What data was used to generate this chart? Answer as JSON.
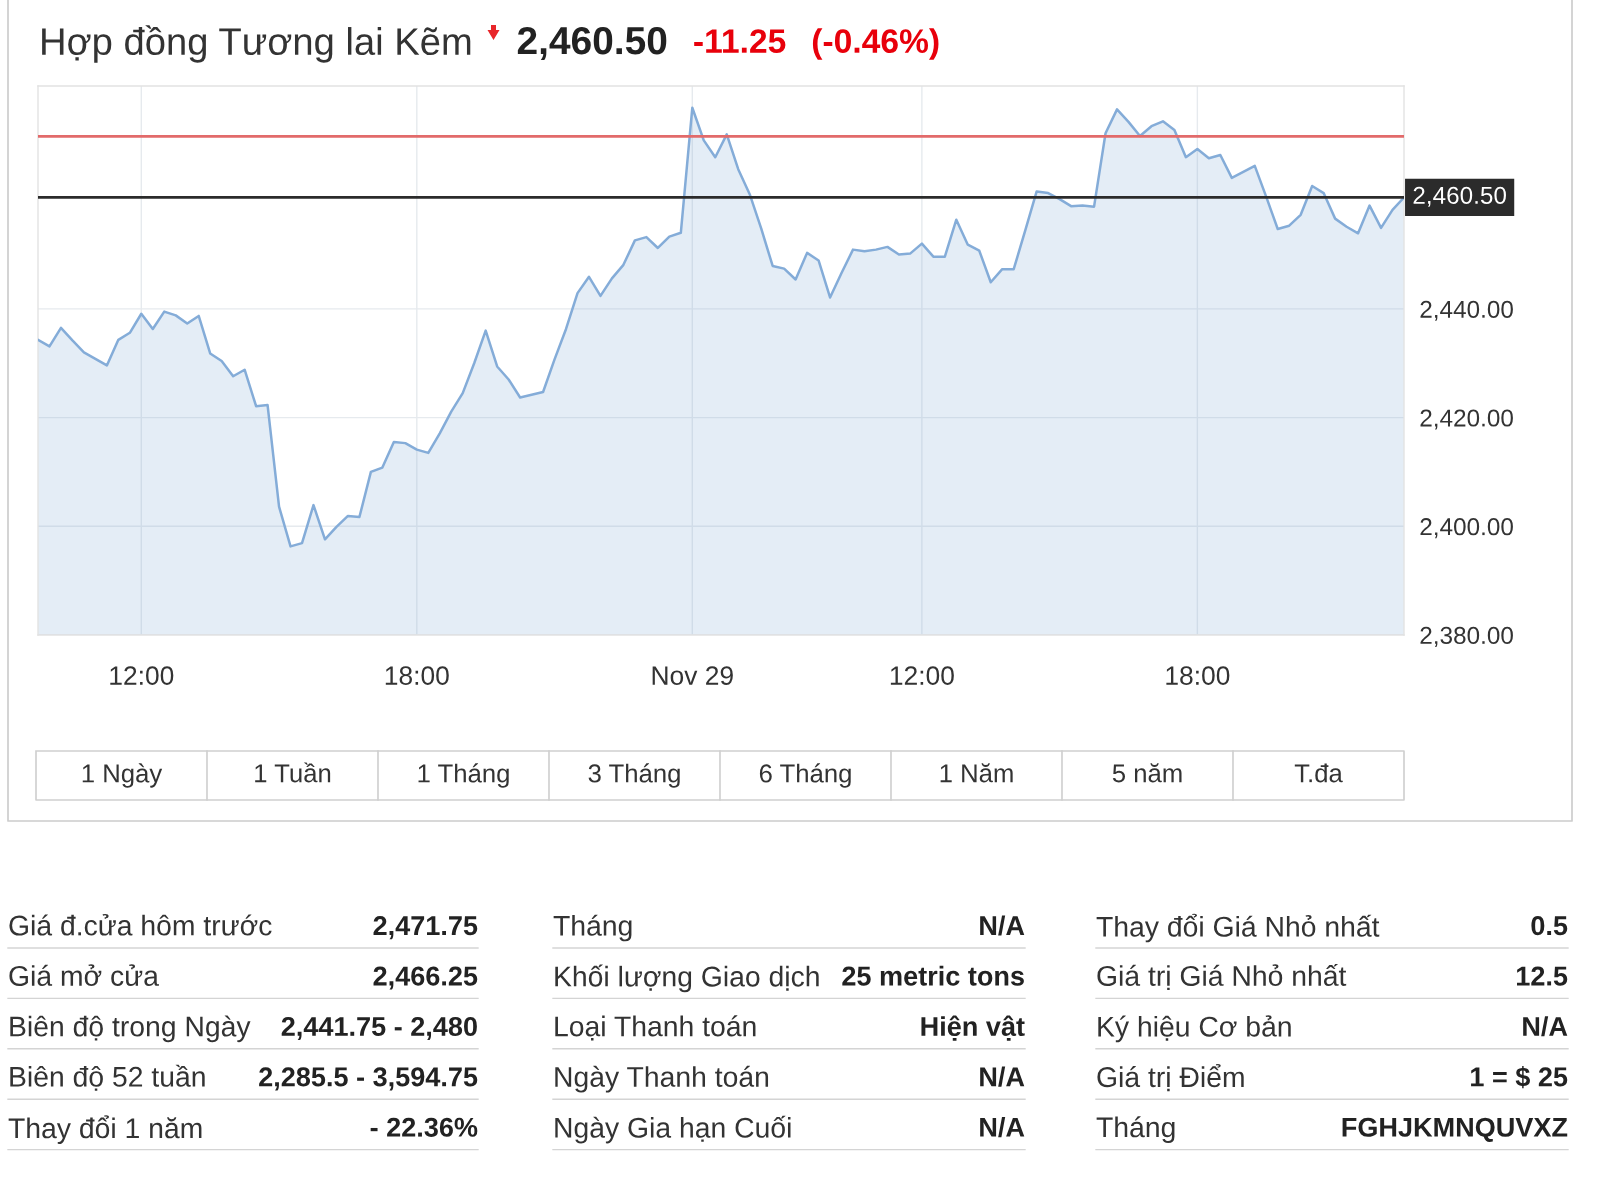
{
  "chart_data": {
    "type": "area",
    "title": "Hợp đồng Tương lai Kẽm",
    "subtitle": "2,460.50",
    "annotations": [
      "-11.25",
      "(-0.46%)",
      "1 Ngày",
      "1 Tuần",
      "1 Tháng",
      "3 Tháng",
      "6 Tháng",
      "1 Năm",
      "5 năm",
      "T.đa",
      "Giá đ.cửa hôm trước",
      "2,471.75",
      "Giá mở cửa",
      "2,466.25",
      "Biên độ trong Ngày",
      "2,441.75 - 2,480",
      "Biên độ 52 tuần",
      "2,285.5 - 3,594.75",
      "Thay đổi 1 năm",
      "- 22.36%",
      "Tháng",
      "N/A",
      "Khối lượng Giao dịch",
      "25 metric tons",
      "Loại Thanh toán",
      "Hiện vật",
      "Ngày Thanh toán",
      "N/A",
      "Ngày Gia hạn Cuối",
      "N/A",
      "Thay đổi Giá Nhỏ nhất",
      "0.5",
      "Giá trị Giá Nhỏ nhất",
      "12.5",
      "Ký hiệu Cơ bản",
      "N/A",
      "Giá trị Điểm",
      "1 = $ 25",
      "Tháng",
      "FGHJKMNQUVXZ"
    ],
    "categories": [
      null,
      null,
      null,
      null,
      null,
      null,
      null,
      null,
      null,
      "12:00",
      null,
      null,
      null,
      null,
      null,
      null,
      null,
      null,
      null,
      null,
      null,
      null,
      null,
      null,
      null,
      null,
      null,
      null,
      null,
      null,
      null,
      null,
      null,
      "18:00",
      null,
      null,
      null,
      null,
      null,
      null,
      null,
      null,
      null,
      null,
      null,
      null,
      null,
      null,
      null,
      null,
      null,
      null,
      null,
      null,
      null,
      null,
      null,
      "Nov 29",
      null,
      null,
      null,
      null,
      null,
      null,
      null,
      null,
      null,
      null,
      null,
      null,
      null,
      null,
      null,
      null,
      null,
      null,
      null,
      "12:00",
      null,
      null,
      null,
      null,
      null,
      null,
      null,
      null,
      null,
      null,
      null,
      null,
      null,
      null,
      null,
      null,
      null,
      null,
      null,
      null,
      null,
      null,
      null,
      "18:00",
      null,
      null,
      null,
      null,
      null,
      null,
      null,
      null,
      null,
      null,
      null,
      null,
      null,
      null,
      null,
      null,
      null,
      null
    ],
    "series": [
      {
        "color": "#84acd8",
        "values": [
          2434.3,
          2433.1,
          2436.5,
          2434.2,
          2432.0,
          2430.8,
          2429.6,
          2434.3,
          2435.6,
          2439.1,
          2436.3,
          2439.5,
          2438.8,
          2437.3,
          2438.7,
          2431.8,
          2430.4,
          2427.6,
          2428.8,
          2422.1,
          2422.3,
          2403.6,
          2396.3,
          2396.9,
          2403.9,
          2397.6,
          2399.9,
          2401.9,
          2401.7,
          2410.0,
          2410.8,
          2415.5,
          2415.3,
          2414.1,
          2413.5,
          2417.1,
          2421.1,
          2424.5,
          2430.0,
          2436.0,
          2429.4,
          2427.0,
          2423.7,
          2424.2,
          2424.7,
          2430.7,
          2436.3,
          2442.9,
          2445.9,
          2442.4,
          2445.6,
          2448.1,
          2452.6,
          2453.2,
          2451.2,
          2453.3,
          2454.0,
          2477.0,
          2471.0,
          2467.9,
          2472.1,
          2465.7,
          2461.1,
          2454.8,
          2447.9,
          2447.4,
          2445.4,
          2450.3,
          2448.9,
          2442.1,
          2446.6,
          2450.9,
          2450.6,
          2450.9,
          2451.4,
          2450.0,
          2450.2,
          2452.0,
          2449.6,
          2449.6,
          2456.4,
          2451.8,
          2450.7,
          2444.9,
          2447.3,
          2447.3,
          2454.4,
          2461.6,
          2461.3,
          2460.2,
          2458.9,
          2459.0,
          2458.8,
          2472.3,
          2476.7,
          2474.4,
          2471.8,
          2473.6,
          2474.5,
          2472.9,
          2467.9,
          2469.4,
          2467.7,
          2468.3,
          2464.1,
          2465.2,
          2466.3,
          2460.6,
          2454.7,
          2455.3,
          2457.3,
          2462.6,
          2461.3,
          2456.6,
          2455.1,
          2453.9,
          2459.0,
          2454.9,
          2458.2,
          2460.5
        ]
      }
    ],
    "ylim": [
      2380,
      2481
    ],
    "yticks": [
      {
        "value": 2380,
        "label": "2,380.00"
      },
      {
        "value": 2400,
        "label": "2,400.00"
      },
      {
        "value": 2420,
        "label": "2,420.00"
      },
      {
        "value": 2440,
        "label": "2,440.00"
      }
    ],
    "ref_lines": [
      {
        "axis": "y",
        "value": 2471.75,
        "color": "#e26a6a"
      },
      {
        "axis": "y",
        "value": 2460.5,
        "label": "2,460.50",
        "color": "#2b2b2b"
      }
    ],
    "grid": true
  }
}
